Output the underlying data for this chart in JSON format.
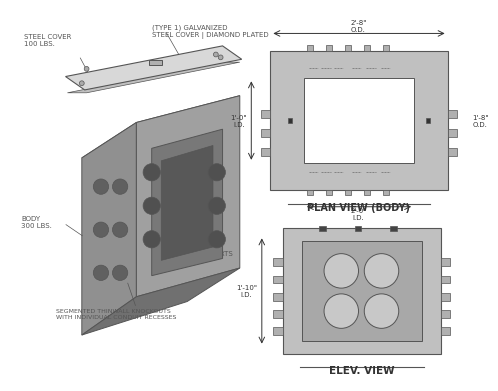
{
  "bg_color": "#ffffff",
  "line_color": "#555555",
  "gray_fill": "#b0b0b0",
  "dark_gray": "#808080",
  "light_gray": "#d0d0d0",
  "white": "#ffffff",
  "title_color": "#333333",
  "dim_color": "#333333",
  "annotation_color": "#555555",
  "plan_view_title": "PLAN VIEW (BODY)",
  "elev_view_title": "ELEV. VIEW",
  "label_steel_cover": "STEEL COVER\n100 LBS.",
  "label_type1": "(TYPE 1) GALVANIZED\nSTEEL COVER | DIAMOND PLATED",
  "label_body": "BODY\n300 LBS.",
  "label_lifting": "LIFTING INSERTS",
  "label_knockouts": "SEGMENTED THINWALL KNOCKOUTS\nWITH INDIVIDUAL CONDUIT RECESSES",
  "dim_28_od": "2'-8\"\nO.D.",
  "dim_10_id": "1'-0\"\nI.D.",
  "dim_18_od": "1'-8\"\nO.D.",
  "dim_20_id": "2'-0\"\nI.D.",
  "dim_110_id": "1'-10\"\nI.D."
}
